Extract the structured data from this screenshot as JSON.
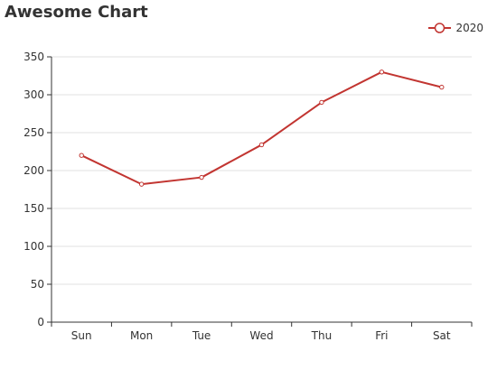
{
  "chart_data": {
    "type": "line",
    "title": "Awesome Chart",
    "categories": [
      "Sun",
      "Mon",
      "Tue",
      "Wed",
      "Thu",
      "Fri",
      "Sat"
    ],
    "series": [
      {
        "name": "2020",
        "values": [
          220,
          182,
          191,
          234,
          290,
          330,
          310
        ],
        "color": "#c23531"
      }
    ],
    "ylim": [
      0,
      350
    ],
    "yticks": [
      0,
      50,
      100,
      150,
      200,
      250,
      300,
      350
    ],
    "grid": true,
    "legend_position": "top-right",
    "colors": {
      "gridline": "#e0e0e0",
      "axis": "#333333",
      "text": "#333333"
    }
  }
}
